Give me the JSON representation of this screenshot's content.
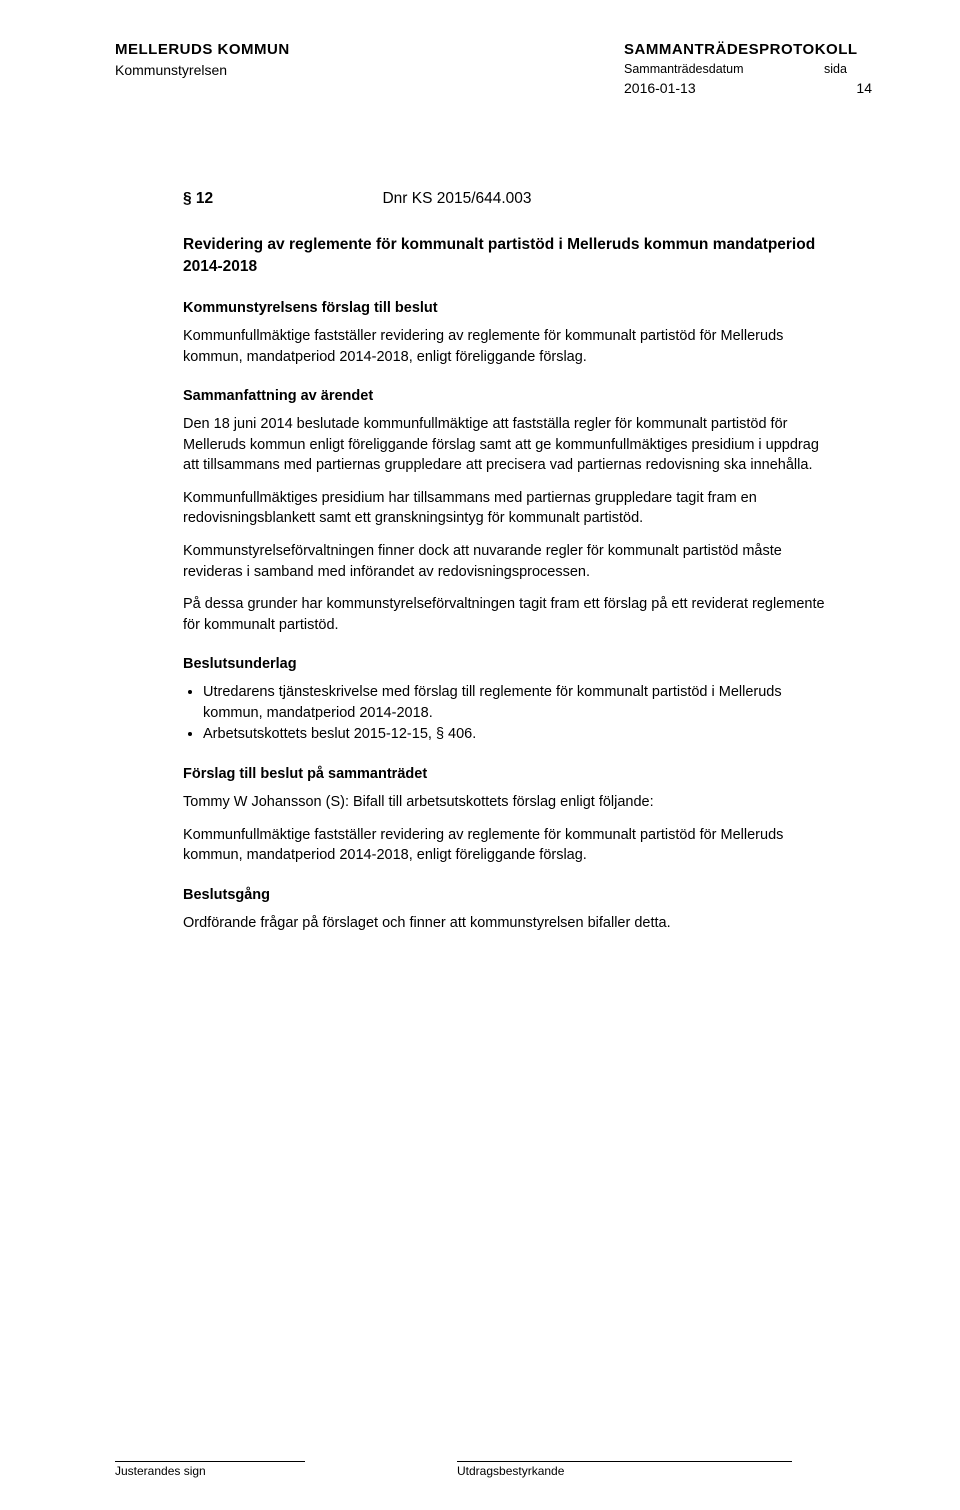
{
  "header": {
    "org_left": "MELLERUDS KOMMUN",
    "org_right": "SAMMANTRÄDESPROTOKOLL",
    "sub_left": "Kommunstyrelsen",
    "sub_right_label": "Sammanträdesdatum",
    "sida_label": "sida",
    "date": "2016-01-13",
    "page_num": "14"
  },
  "section": {
    "num": "§ 12",
    "dnr": "Dnr KS 2015/644.003"
  },
  "title": "Revidering av reglemente för kommunalt partistöd i Melleruds kommun mandatperiod 2014-2018",
  "h1": "Kommunstyrelsens förslag till beslut",
  "p1": "Kommunfullmäktige fastställer revidering av reglemente för kommunalt partistöd för Melleruds kommun, mandatperiod 2014-2018, enligt föreliggande förslag.",
  "h2": "Sammanfattning av ärendet",
  "p2": "Den 18 juni 2014 beslutade kommunfullmäktige att fastställa regler för kommunalt partistöd för Melleruds kommun enligt föreliggande förslag samt att ge kommunfullmäktiges presidium i uppdrag att tillsammans med partiernas gruppledare att precisera vad partiernas redovisning ska innehålla.",
  "p3": "Kommunfullmäktiges presidium har tillsammans med partiernas gruppledare tagit fram en redovisningsblankett samt ett granskningsintyg för kommunalt partistöd.",
  "p4": "Kommunstyrelseförvaltningen finner dock att nuvarande regler för kommunalt partistöd måste revideras i samband med införandet av redovisningsprocessen.",
  "p5": "På dessa grunder har kommunstyrelseförvaltningen tagit fram ett förslag på ett reviderat reglemente för kommunalt partistöd.",
  "h3": "Beslutsunderlag",
  "bullets": [
    "Utredarens tjänsteskrivelse med förslag till reglemente för kommunalt partistöd i Melleruds kommun, mandatperiod 2014-2018.",
    "Arbetsutskottets beslut 2015-12-15, § 406."
  ],
  "h4": "Förslag till beslut på sammanträdet",
  "p6": "Tommy W Johansson (S): Bifall till arbetsutskottets förslag enligt följande:",
  "p7": "Kommunfullmäktige fastställer revidering av reglemente för kommunalt partistöd för Melleruds kommun, mandatperiod 2014-2018, enligt föreliggande förslag.",
  "h5": "Beslutsgång",
  "p8": "Ordförande frågar på förslaget och finner att kommunstyrelsen bifaller detta.",
  "footer": {
    "left": "Justerandes sign",
    "right": "Utdragsbestyrkande"
  },
  "colors": {
    "text": "#000000",
    "background": "#ffffff",
    "border": "#000000"
  },
  "typography": {
    "header_bold_fontsize": 15,
    "body_fontsize": 14.5,
    "footer_fontsize": 12,
    "font_family": "Verdana, Arial, sans-serif"
  }
}
